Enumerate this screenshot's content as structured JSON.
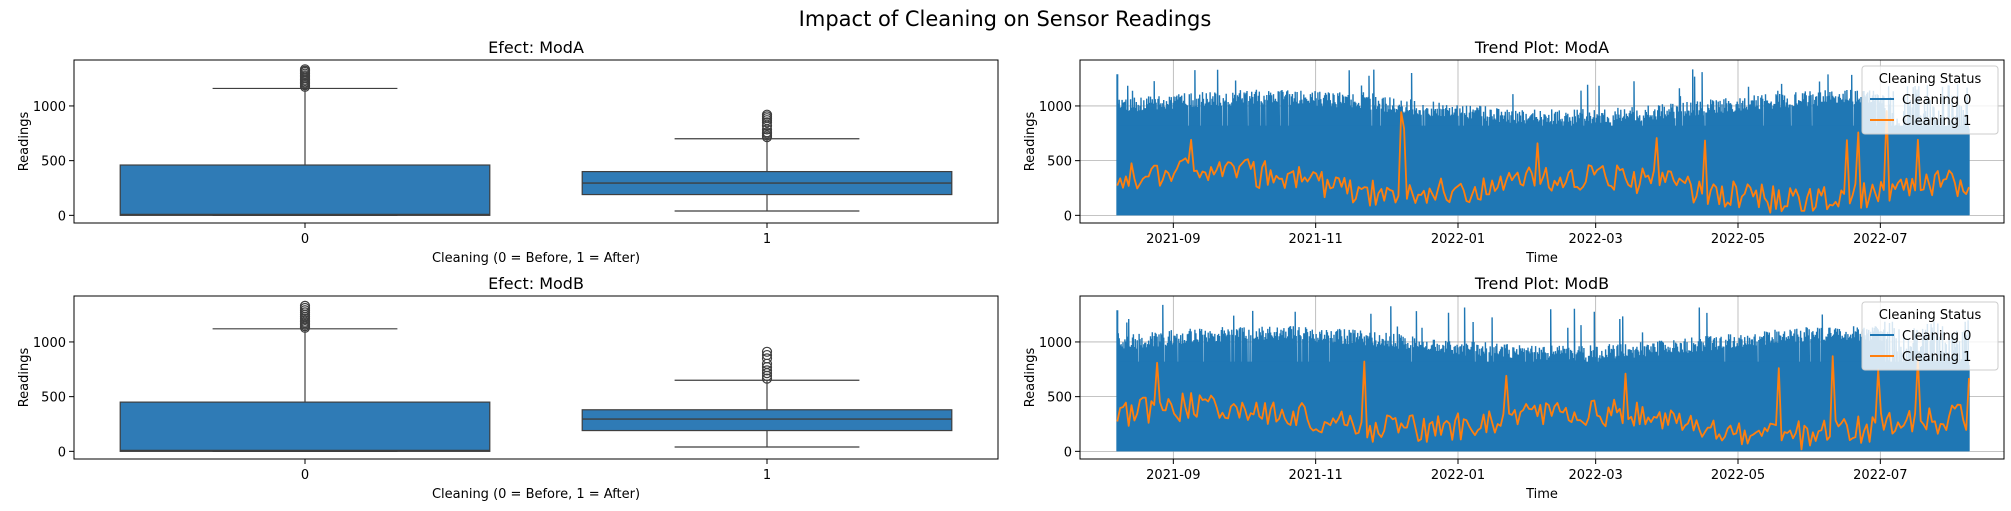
{
  "figure": {
    "title": "Impact of Cleaning on Sensor Readings"
  },
  "colors": {
    "box": "#2f7bb6",
    "cleaning0": "#1f77b4",
    "cleaning1": "#ff7f0e",
    "grid": "#b0b0b0"
  },
  "chart_data": [
    {
      "type": "box",
      "title": "Efect: ModA",
      "xlabel": "Cleaning (0 = Before, 1 = After)",
      "ylabel": "Readings",
      "categories": [
        "0",
        "1"
      ],
      "ylim": [
        -70,
        1420
      ],
      "yticks": [
        0,
        500,
        1000
      ],
      "boxes": [
        {
          "category": "0",
          "whisker_low": 0,
          "q1": 0,
          "median": 8,
          "q3": 460,
          "whisker_high": 1160,
          "outliers": [
            1175,
            1190,
            1205,
            1215,
            1228,
            1240,
            1255,
            1268,
            1280,
            1295,
            1310,
            1322,
            1335
          ]
        },
        {
          "category": "1",
          "whisker_low": 40,
          "q1": 190,
          "median": 295,
          "q3": 400,
          "whisker_high": 700,
          "outliers": [
            715,
            730,
            748,
            760,
            785,
            820,
            850,
            870,
            888,
            905,
            920
          ]
        }
      ]
    },
    {
      "type": "line",
      "title": "Trend Plot: ModA",
      "xlabel": "Time",
      "ylabel": "Readings",
      "xlim": [
        "2021-07-23",
        "2022-08-23"
      ],
      "xticks": [
        "2021-09",
        "2021-11",
        "2022-01",
        "2022-03",
        "2022-05",
        "2022-07"
      ],
      "ylim": [
        -70,
        1420
      ],
      "yticks": [
        0,
        500,
        1000
      ],
      "grid": true,
      "legend": {
        "title": "Cleaning Status",
        "position": "top-right"
      },
      "series": [
        {
          "name": "Cleaning 0",
          "color": "#1f77b4",
          "x_start": "2021-08-08",
          "x_end": "2022-08-08",
          "min": 0,
          "max": 1340
        },
        {
          "name": "Cleaning 1",
          "color": "#ff7f0e",
          "x_start": "2021-08-08",
          "x_end": "2022-08-08",
          "min": 10,
          "max": 960
        }
      ]
    },
    {
      "type": "box",
      "title": "Efect: ModB",
      "xlabel": "Cleaning (0 = Before, 1 = After)",
      "ylabel": "Readings",
      "categories": [
        "0",
        "1"
      ],
      "ylim": [
        -70,
        1420
      ],
      "yticks": [
        0,
        500,
        1000
      ],
      "boxes": [
        {
          "category": "0",
          "whisker_low": 0,
          "q1": 0,
          "median": 8,
          "q3": 450,
          "whisker_high": 1120,
          "outliers": [
            1130,
            1145,
            1160,
            1172,
            1185,
            1200,
            1215,
            1230,
            1250,
            1270,
            1290,
            1310,
            1330
          ]
        },
        {
          "category": "1",
          "whisker_low": 40,
          "q1": 190,
          "median": 295,
          "q3": 380,
          "whisker_high": 650,
          "outliers": [
            665,
            690,
            715,
            740,
            770,
            800,
            850,
            880,
            910
          ]
        }
      ]
    },
    {
      "type": "line",
      "title": "Trend Plot: ModB",
      "xlabel": "Time",
      "ylabel": "Readings",
      "xlim": [
        "2021-07-23",
        "2022-08-23"
      ],
      "xticks": [
        "2021-09",
        "2021-11",
        "2022-01",
        "2022-03",
        "2022-05",
        "2022-07"
      ],
      "ylim": [
        -70,
        1420
      ],
      "yticks": [
        0,
        500,
        1000
      ],
      "grid": true,
      "legend": {
        "title": "Cleaning Status",
        "position": "top-right"
      },
      "series": [
        {
          "name": "Cleaning 0",
          "color": "#1f77b4",
          "x_start": "2021-08-08",
          "x_end": "2022-08-08",
          "min": 0,
          "max": 1340
        },
        {
          "name": "Cleaning 1",
          "color": "#ff7f0e",
          "x_start": "2021-08-08",
          "x_end": "2022-08-08",
          "min": 10,
          "max": 960
        }
      ]
    }
  ]
}
